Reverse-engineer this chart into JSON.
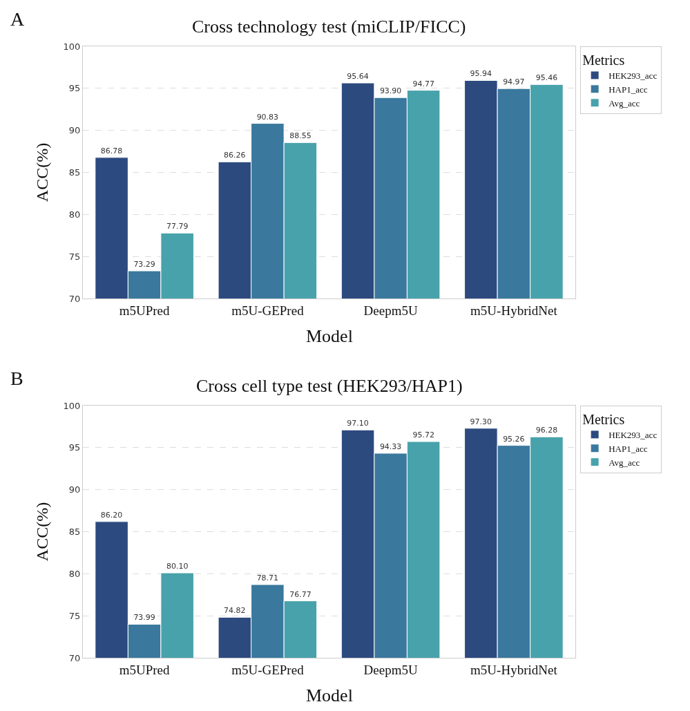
{
  "chart_data": [
    {
      "type": "bar",
      "title": "Cross technology test (miCLIP/FICC)",
      "xlabel": "Model",
      "ylabel": "ACC(%)",
      "legend_title": "Metrics",
      "annotations": [
        "A"
      ],
      "categories": [
        "m5UPred",
        "m5U-GEPred",
        "Deepm5U",
        "m5U-HybridNet"
      ],
      "series": [
        {
          "name": "HEK293_acc",
          "color": "#2d4a7f",
          "values": [
            86.78,
            86.26,
            95.64,
            95.94
          ],
          "value_labels": [
            "86.78",
            "86.26",
            "95.64",
            "95.94"
          ]
        },
        {
          "name": "HAP1_acc",
          "color": "#3a789d",
          "values": [
            73.29,
            90.83,
            93.9,
            94.97
          ],
          "value_labels": [
            "73.29",
            "90.83",
            "93.90",
            "94.97"
          ]
        },
        {
          "name": "Avg_acc",
          "color": "#48a2ab",
          "values": [
            77.79,
            88.55,
            94.77,
            95.46
          ],
          "value_labels": [
            "77.79",
            "88.55",
            "94.77",
            "95.46"
          ]
        }
      ],
      "ylim": [
        70,
        100
      ],
      "yticks": [
        70,
        75,
        80,
        85,
        90,
        95,
        100
      ],
      "grid": "y",
      "legend": "top right"
    },
    {
      "type": "bar",
      "title": "Cross cell type test (HEK293/HAP1)",
      "xlabel": "Model",
      "ylabel": "ACC(%)",
      "legend_title": "Metrics",
      "annotations": [
        "B"
      ],
      "categories": [
        "m5UPred",
        "m5U-GEPred",
        "Deepm5U",
        "m5U-HybridNet"
      ],
      "series": [
        {
          "name": "HEK293_acc",
          "color": "#2d4a7f",
          "values": [
            86.2,
            74.82,
            97.1,
            97.3
          ],
          "value_labels": [
            "86.20",
            "74.82",
            "97.10",
            "97.30"
          ]
        },
        {
          "name": "HAP1_acc",
          "color": "#3a789d",
          "values": [
            73.99,
            78.71,
            94.33,
            95.26
          ],
          "value_labels": [
            "73.99",
            "78.71",
            "94.33",
            "95.26"
          ]
        },
        {
          "name": "Avg_acc",
          "color": "#48a2ab",
          "values": [
            80.1,
            76.77,
            95.72,
            96.28
          ],
          "value_labels": [
            "80.10",
            "76.77",
            "95.72",
            "96.28"
          ]
        }
      ],
      "ylim": [
        70,
        100
      ],
      "yticks": [
        70,
        75,
        80,
        85,
        90,
        95,
        100
      ],
      "grid": "y",
      "legend": "top right"
    }
  ]
}
